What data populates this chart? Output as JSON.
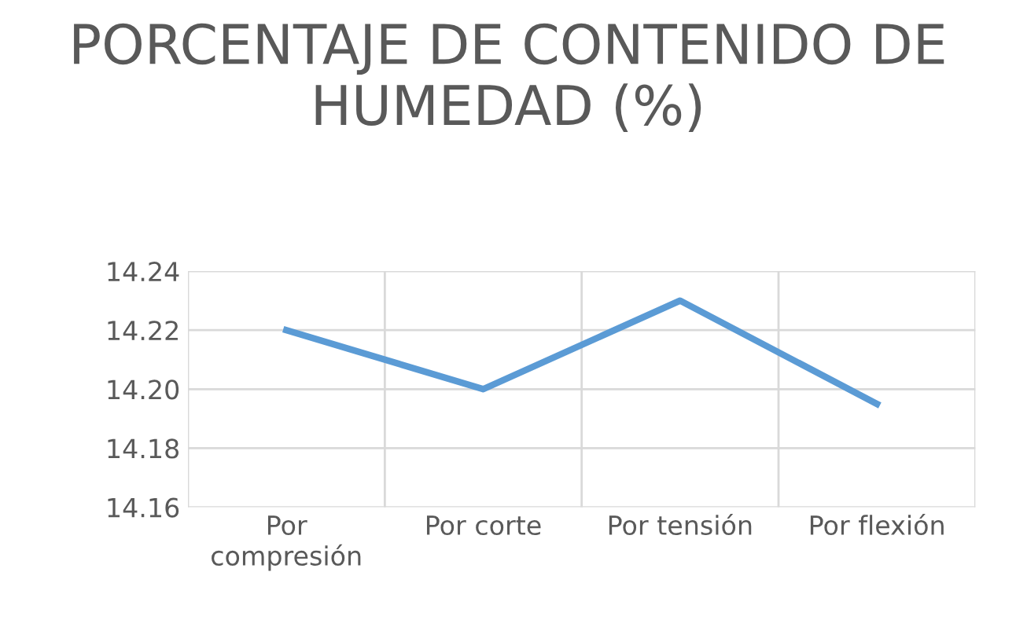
{
  "chart_data": {
    "type": "line",
    "title": "PORCENTAJE DE CONTENIDO DE HUMEDAD (%)",
    "categories": [
      "Por\ncompresión",
      "Por corte",
      "Por tensión",
      "Por flexión"
    ],
    "series": [
      {
        "color": "#5b9bd5",
        "values": [
          14.22,
          14.2,
          14.23,
          14.195
        ]
      }
    ],
    "ylim": [
      14.16,
      14.24
    ],
    "yticks": [
      {
        "value": 14.16,
        "label": "14.16"
      },
      {
        "value": 14.18,
        "label": "14.18"
      },
      {
        "value": 14.2,
        "label": "14.20"
      },
      {
        "value": 14.22,
        "label": "14.22"
      },
      {
        "value": 14.24,
        "label": "14.24"
      }
    ],
    "grid": true,
    "legend": false,
    "marker": "none",
    "line_style": "solid"
  }
}
